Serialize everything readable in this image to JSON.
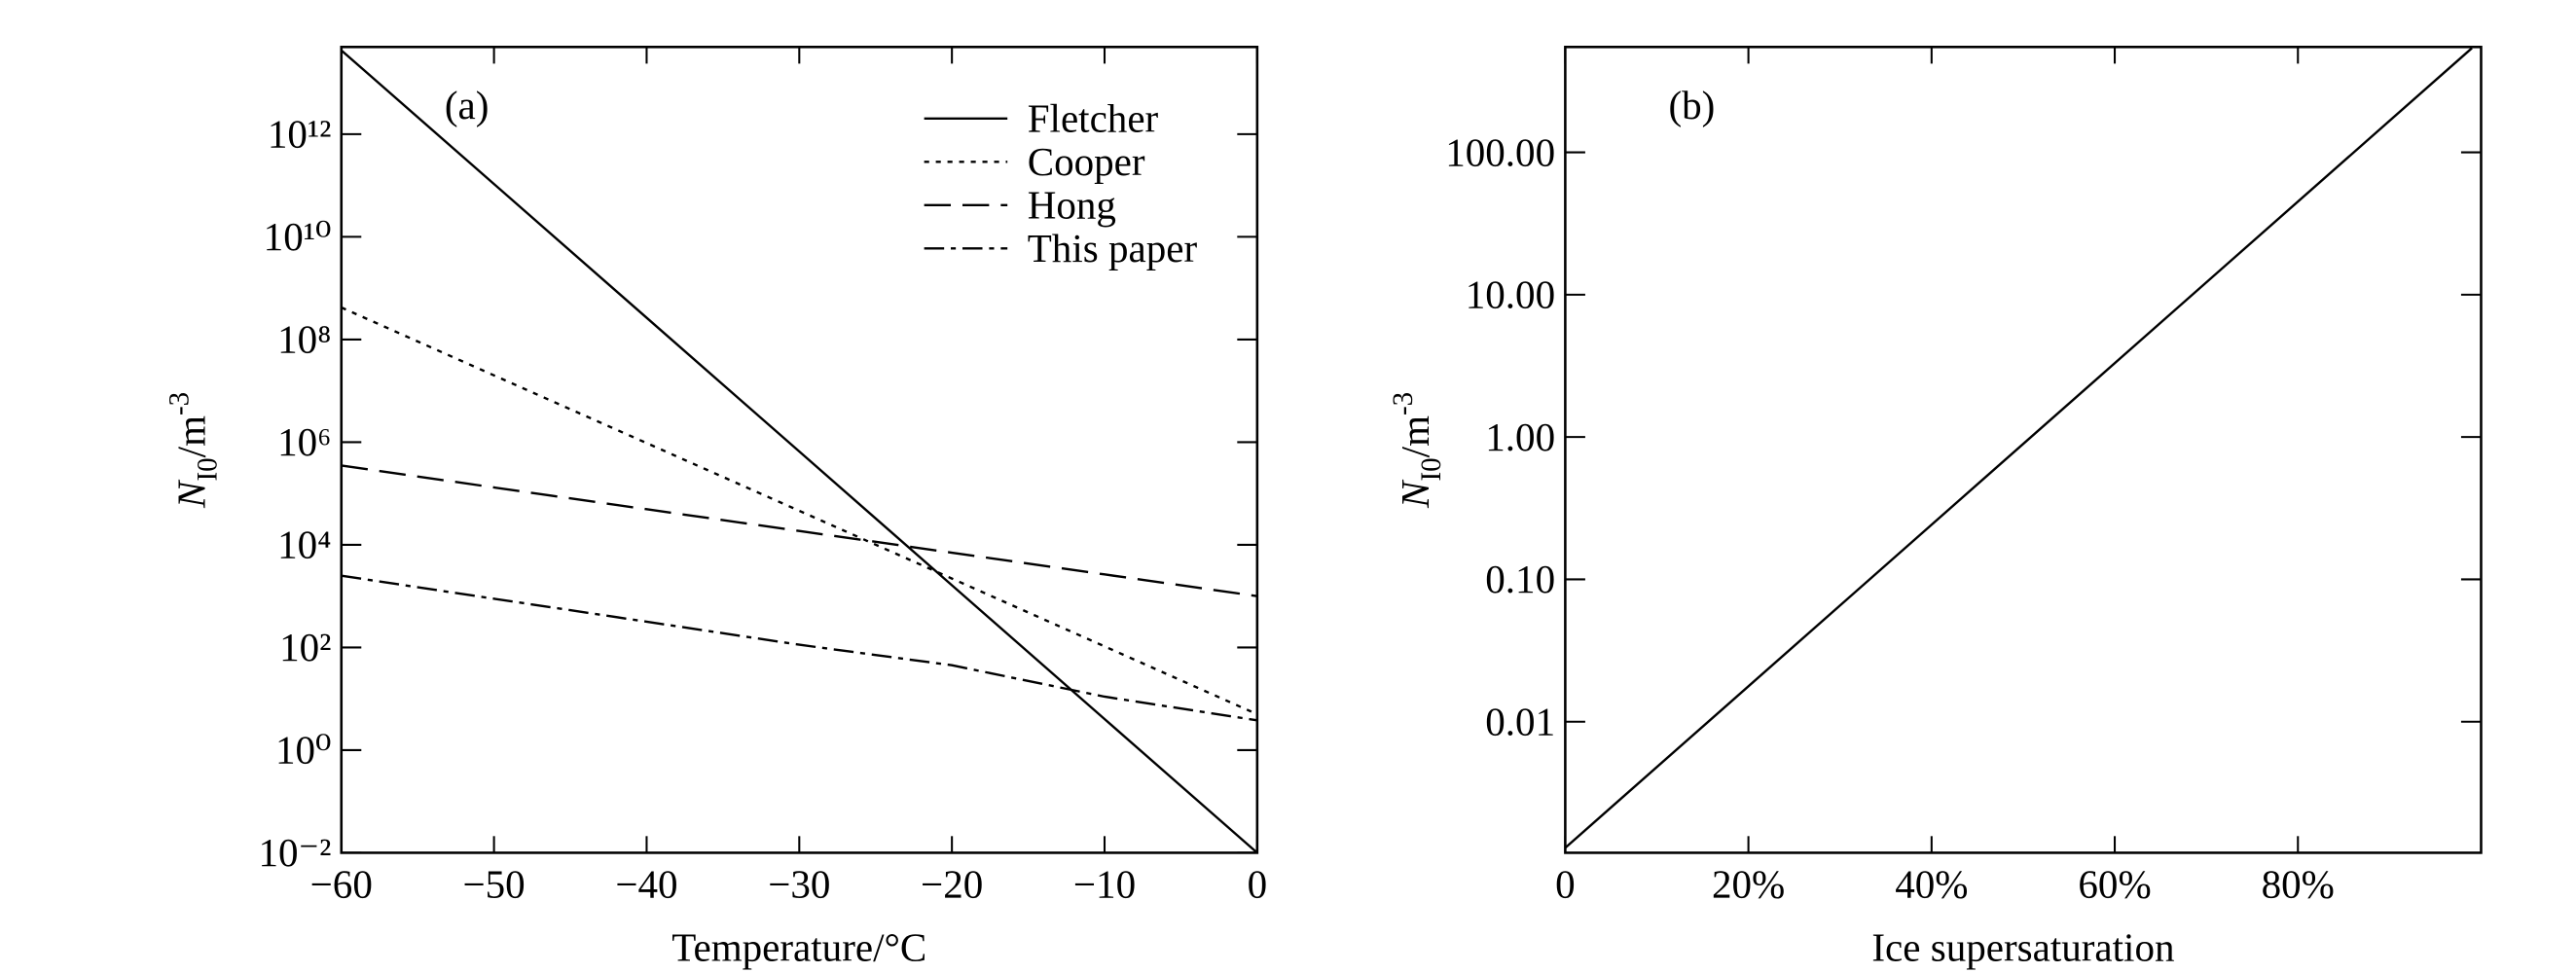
{
  "chart_data": [
    {
      "type": "line",
      "annotation": "(a)",
      "xlabel": "Temperature/°C",
      "ylabel": {
        "main": "N",
        "sub": "I0",
        "unit": "/m",
        "sup": "-3"
      },
      "x": [
        -60,
        -50,
        -40,
        -30,
        -20,
        -10,
        0
      ],
      "series": [
        {
          "name": "Fletcher",
          "color": "#000000",
          "dash": "solid",
          "values": [
            43000000000000.0,
            107000000000.0,
            265000000.0,
            657000.0,
            1628,
            4.03,
            0.01
          ]
        },
        {
          "name": "Cooper",
          "color": "#000000",
          "dash": "dotted",
          "values": [
            420000000.0,
            20000000.0,
            960000.0,
            46000.0,
            2200,
            105,
            5
          ]
        },
        {
          "name": "Hong",
          "color": "#000000",
          "dash": "dashed",
          "values": [
            350000.0,
            131000.0,
            49300.0,
            18600.0,
            7020,
            2650,
            1000
          ]
        },
        {
          "name": "This paper",
          "color": "#000000",
          "dash": "dashdot",
          "values": [
            2500,
            890,
            318,
            113,
            45,
            11,
            3.8
          ]
        }
      ],
      "xlim": [
        -60,
        0
      ],
      "xticks": [
        {
          "value": -60,
          "label": "−60"
        },
        {
          "value": -50,
          "label": "−50"
        },
        {
          "value": -40,
          "label": "−40"
        },
        {
          "value": -30,
          "label": "−30"
        },
        {
          "value": -20,
          "label": "−20"
        },
        {
          "value": -10,
          "label": "−10"
        },
        0
      ],
      "ylim": [
        0.01,
        50000000000000.0
      ],
      "ylog": true,
      "yticks": [
        {
          "value": 0.01,
          "label": "10⁻²"
        },
        {
          "value": 1,
          "label": "10⁰"
        },
        {
          "value": 100,
          "label": "10²"
        },
        {
          "value": 10000,
          "label": "10⁴"
        },
        {
          "value": 1000000,
          "label": "10⁶"
        },
        {
          "value": 100000000,
          "label": "10⁸"
        },
        {
          "value": 10000000000,
          "label": "10¹⁰"
        },
        {
          "value": 1000000000000,
          "label": "10¹²"
        }
      ],
      "legend": "upper right"
    },
    {
      "type": "line",
      "annotation": "(b)",
      "xlabel": "Ice supersaturation",
      "ylabel": {
        "main": "N",
        "sub": "I0",
        "unit": "/m",
        "sup": "-3"
      },
      "x": [
        0,
        0.99
      ],
      "series": [
        {
          "color": "#000000",
          "dash": "solid",
          "values": [
            0.0013,
            540
          ]
        }
      ],
      "xlim": [
        0,
        1
      ],
      "xticks": [
        0,
        {
          "value": 0.2,
          "label": "20%"
        },
        {
          "value": 0.4,
          "label": "40%"
        },
        {
          "value": 0.6,
          "label": "60%"
        },
        {
          "value": 0.8,
          "label": "80%"
        }
      ],
      "ylim": [
        0.0012,
        550
      ],
      "ylog": true,
      "yticks": [
        {
          "value": 0.01,
          "label": "0.01"
        },
        {
          "value": 0.1,
          "label": "0.10"
        },
        {
          "value": 1,
          "label": "1.00"
        },
        {
          "value": 10,
          "label": "10.00"
        },
        {
          "value": 100,
          "label": "100.00"
        }
      ]
    }
  ]
}
